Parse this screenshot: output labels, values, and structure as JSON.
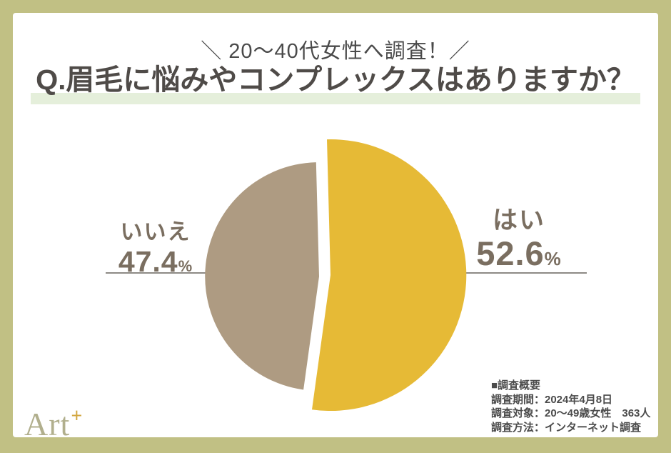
{
  "page": {
    "frame_color": "#c1c084",
    "card_color": "#ffffff"
  },
  "header": {
    "tagline": "＼ 20〜40代女性へ調査！／",
    "title": "Q.眉毛に悩みやコンプレックスはありますか？",
    "highlight_color": "#e5efdb"
  },
  "chart_data": {
    "type": "pie",
    "title": "眉毛に悩みやコンプレックスはありますか？",
    "unit": "%",
    "categories": [
      "はい",
      "いいえ"
    ],
    "values": [
      52.6,
      47.4
    ],
    "slices": [
      {
        "label": "はい",
        "value": 52.6,
        "display": "52.6",
        "color": "#e6ba36",
        "emphasized": true
      },
      {
        "label": "いいえ",
        "value": 47.4,
        "display": "47.4",
        "color": "#ae9b82",
        "emphasized": false
      }
    ],
    "start_angle_deg": -1.5,
    "direction": "clockwise",
    "legend_position": "callout-labels",
    "label_color": "#7a6e60",
    "leader_line_color": "#8d8a85"
  },
  "survey_info": {
    "heading": "■調査概要",
    "items": [
      "調査期間：2024年4月8日",
      "調査対象：20〜49歳女性　363人",
      "調査方法：インターネット調査"
    ]
  },
  "logo": {
    "text": "Art",
    "plus": "+"
  }
}
